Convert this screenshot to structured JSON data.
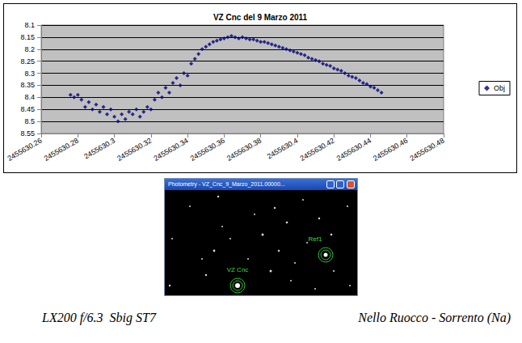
{
  "chart_data": {
    "type": "scatter",
    "title": "VZ Cnc del 9 Marzo 2011",
    "x": [
      2455630.276,
      2455630.278,
      2455630.28,
      2455630.282,
      2455630.284,
      2455630.286,
      2455630.288,
      2455630.29,
      2455630.292,
      2455630.294,
      2455630.296,
      2455630.298,
      2455630.3,
      2455630.302,
      2455630.304,
      2455630.306,
      2455630.308,
      2455630.31,
      2455630.312,
      2455630.314,
      2455630.316,
      2455630.318,
      2455630.32,
      2455630.322,
      2455630.324,
      2455630.326,
      2455630.328,
      2455630.33,
      2455630.332,
      2455630.334,
      2455630.336,
      2455630.338,
      2455630.34,
      2455630.342,
      2455630.344,
      2455630.346,
      2455630.348,
      2455630.35,
      2455630.352,
      2455630.354,
      2455630.356,
      2455630.358,
      2455630.36,
      2455630.362,
      2455630.364,
      2455630.366,
      2455630.368,
      2455630.37,
      2455630.372,
      2455630.374,
      2455630.376,
      2455630.378,
      2455630.38,
      2455630.382,
      2455630.384,
      2455630.386,
      2455630.388,
      2455630.39,
      2455630.392,
      2455630.394,
      2455630.396,
      2455630.398,
      2455630.4,
      2455630.402,
      2455630.404,
      2455630.406,
      2455630.408,
      2455630.41,
      2455630.412,
      2455630.414,
      2455630.416,
      2455630.418,
      2455630.42,
      2455630.422,
      2455630.424,
      2455630.426,
      2455630.428,
      2455630.43,
      2455630.432,
      2455630.434,
      2455630.436,
      2455630.438,
      2455630.44,
      2455630.442,
      2455630.444,
      2455630.446
    ],
    "series": [
      {
        "name": "Obj",
        "color": "#000080",
        "marker": "diamond",
        "values": [
          8.39,
          8.4,
          8.39,
          8.41,
          8.44,
          8.42,
          8.45,
          8.43,
          8.46,
          8.44,
          8.47,
          8.45,
          8.48,
          8.5,
          8.47,
          8.49,
          8.46,
          8.47,
          8.45,
          8.48,
          8.46,
          8.44,
          8.45,
          8.41,
          8.38,
          8.4,
          8.36,
          8.38,
          8.34,
          8.32,
          8.35,
          8.3,
          8.31,
          8.26,
          8.24,
          8.22,
          8.2,
          8.19,
          8.18,
          8.17,
          8.165,
          8.16,
          8.155,
          8.15,
          8.145,
          8.15,
          8.155,
          8.15,
          8.155,
          8.16,
          8.16,
          8.165,
          8.17,
          8.17,
          8.175,
          8.18,
          8.185,
          8.19,
          8.195,
          8.2,
          8.205,
          8.21,
          8.215,
          8.22,
          8.225,
          8.235,
          8.24,
          8.245,
          8.25,
          8.26,
          8.265,
          8.27,
          8.28,
          8.285,
          8.29,
          8.3,
          8.31,
          8.315,
          8.32,
          8.33,
          8.34,
          8.345,
          8.355,
          8.36,
          8.37,
          8.38
        ]
      }
    ],
    "xlim": [
      2455630.26,
      2455630.48
    ],
    "xticks": [
      2455630.26,
      2455630.28,
      2455630.3,
      2455630.32,
      2455630.34,
      2455630.36,
      2455630.38,
      2455630.4,
      2455630.42,
      2455630.44,
      2455630.46,
      2455630.48
    ],
    "ylim": [
      8.55,
      8.1
    ],
    "yticks": [
      8.1,
      8.15,
      8.2,
      8.25,
      8.3,
      8.35,
      8.4,
      8.45,
      8.5,
      8.55
    ],
    "grid": true,
    "legend": "right"
  },
  "photometry_window": {
    "title": "Photometry - VZ_Cnc_9_Marzo_2011.00000...",
    "labels": [
      "Ref1",
      "VZ Cnc"
    ]
  },
  "captions": {
    "left": "LX200 f/6.3  Sbig ST7",
    "right": "Nello Ruocco - Sorrento (Na)"
  }
}
